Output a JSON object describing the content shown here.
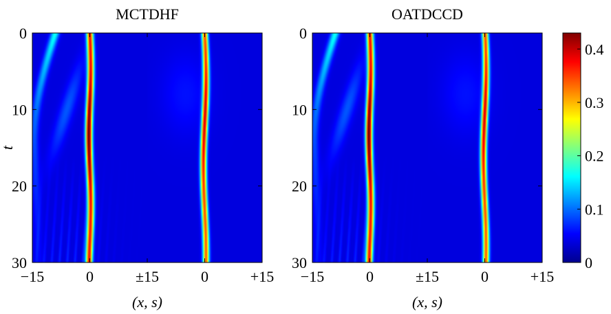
{
  "chart_data": [
    {
      "type": "heatmap",
      "title": "MCTDHF",
      "xlabel": "(x, s)",
      "ylabel": "t",
      "xticks": [
        "−15",
        "0",
        "±15",
        "0",
        "+15"
      ],
      "yticks": [
        "0",
        "10",
        "20",
        "30"
      ],
      "ylim": [
        0,
        30
      ],
      "description_of_axes": "x from −15 to +15 then s from −15 to +15",
      "features": {
        "density_peak_x": 0,
        "density_peak_s": 0,
        "peak_max": 0.43,
        "emitted_wave": "curving to the left, reaching x≈−15 near t≈10–15 then fading"
      }
    },
    {
      "type": "heatmap",
      "title": "OATDCCD",
      "xlabel": "(x, s)",
      "ylabel": "",
      "xticks": [
        "−15",
        "0",
        "±15",
        "0",
        "+15"
      ],
      "yticks": [
        "0",
        "10",
        "20",
        "30"
      ],
      "ylim": [
        0,
        30
      ],
      "features": {
        "density_peak_x": 0,
        "density_peak_s": 0,
        "peak_max": 0.43,
        "emitted_wave": "curving to the left, reaching x≈−15 near t≈10–15 then fading"
      }
    }
  ],
  "colorbar": {
    "min": 0,
    "max": 0.43,
    "ticks": [
      "0",
      "0.1",
      "0.2",
      "0.3",
      "0.4"
    ],
    "tick_values": [
      0,
      0.1,
      0.2,
      0.3,
      0.4
    ],
    "colormap": "jet"
  }
}
